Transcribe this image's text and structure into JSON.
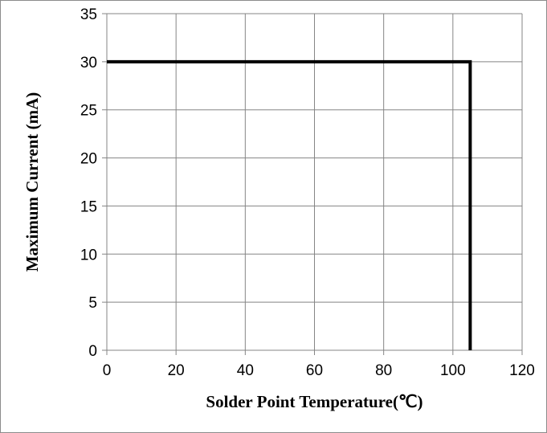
{
  "chart_data": {
    "type": "line",
    "title": "",
    "xlabel": "Solder Point Temperature(℃)",
    "ylabel": "Maximum Current (mA)",
    "xlim": [
      0,
      120
    ],
    "ylim": [
      0,
      35
    ],
    "xticks": [
      0,
      20,
      40,
      60,
      80,
      100,
      120
    ],
    "yticks": [
      0,
      5,
      10,
      15,
      20,
      25,
      30,
      35
    ],
    "x_tick_labels": [
      "0",
      "20",
      "40",
      "60",
      "80",
      "100",
      "120"
    ],
    "y_tick_labels": [
      "0",
      "5",
      "10",
      "15",
      "20",
      "25",
      "30",
      "35"
    ],
    "grid": true,
    "legend": "none",
    "series": [
      {
        "x": [
          0,
          105,
          105
        ],
        "y": [
          30,
          30,
          0
        ],
        "color": "#000000"
      }
    ]
  }
}
